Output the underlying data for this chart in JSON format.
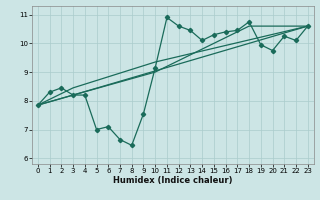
{
  "xlabel": "Humidex (Indice chaleur)",
  "xlim": [
    -0.5,
    23.5
  ],
  "ylim": [
    5.8,
    11.3
  ],
  "xticks": [
    0,
    1,
    2,
    3,
    4,
    5,
    6,
    7,
    8,
    9,
    10,
    11,
    12,
    13,
    14,
    15,
    16,
    17,
    18,
    19,
    20,
    21,
    22,
    23
  ],
  "yticks": [
    6,
    7,
    8,
    9,
    10,
    11
  ],
  "bg_color": "#cce5e5",
  "line_color": "#1a6b5a",
  "main_series": {
    "x": [
      0,
      1,
      2,
      3,
      4,
      5,
      6,
      7,
      8,
      9,
      10,
      11,
      12,
      13,
      14,
      15,
      16,
      17,
      18,
      19,
      20,
      21,
      22,
      23
    ],
    "y": [
      7.85,
      8.3,
      8.45,
      8.2,
      8.2,
      7.0,
      7.1,
      6.65,
      6.45,
      7.55,
      9.15,
      10.9,
      10.6,
      10.45,
      10.1,
      10.3,
      10.4,
      10.45,
      10.75,
      9.95,
      9.75,
      10.25,
      10.1,
      10.6
    ]
  },
  "diag_lines": [
    {
      "x": [
        0,
        3,
        23
      ],
      "y": [
        7.85,
        8.2,
        10.6
      ]
    },
    {
      "x": [
        0,
        3,
        10,
        23
      ],
      "y": [
        7.85,
        8.45,
        9.35,
        10.6
      ]
    },
    {
      "x": [
        0,
        3,
        10,
        18,
        23
      ],
      "y": [
        7.85,
        8.2,
        9.0,
        10.6,
        10.6
      ]
    }
  ]
}
